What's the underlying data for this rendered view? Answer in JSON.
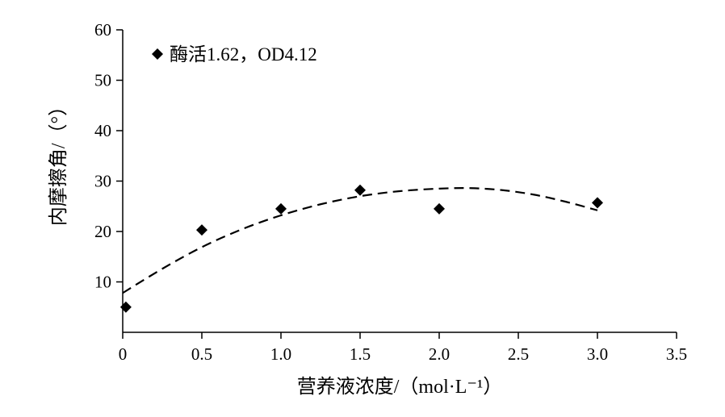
{
  "chart_data": {
    "type": "scatter",
    "xlabel": "营养液浓度/（mol·L⁻¹）",
    "ylabel": "内摩擦角/（°）",
    "xlim": [
      0,
      3.5
    ],
    "ylim": [
      0,
      60
    ],
    "x_ticks": [
      "0",
      "0.5",
      "1.0",
      "1.5",
      "2.0",
      "2.5",
      "3.0",
      "3.5"
    ],
    "y_ticks": [
      "10",
      "20",
      "30",
      "40",
      "50",
      "60"
    ],
    "grid": false,
    "legend_position": "top-left",
    "series": [
      {
        "name": "酶活1.62，OD4.12",
        "marker": "diamond",
        "color": "#000000",
        "points": [
          {
            "x": 0.02,
            "y": 5.0
          },
          {
            "x": 0.5,
            "y": 20.3
          },
          {
            "x": 1.0,
            "y": 24.5
          },
          {
            "x": 1.5,
            "y": 28.2
          },
          {
            "x": 2.0,
            "y": 24.5
          },
          {
            "x": 3.0,
            "y": 25.7
          }
        ]
      }
    ],
    "trendline": {
      "style": "dashed",
      "color": "#000000",
      "points": [
        {
          "x": 0.0,
          "y": 7.8
        },
        {
          "x": 0.25,
          "y": 12.6
        },
        {
          "x": 0.5,
          "y": 16.9
        },
        {
          "x": 0.75,
          "y": 20.4
        },
        {
          "x": 1.0,
          "y": 23.2
        },
        {
          "x": 1.25,
          "y": 25.4
        },
        {
          "x": 1.5,
          "y": 27.0
        },
        {
          "x": 1.75,
          "y": 28.0
        },
        {
          "x": 2.0,
          "y": 28.5
        },
        {
          "x": 2.2,
          "y": 28.6
        },
        {
          "x": 2.4,
          "y": 28.2
        },
        {
          "x": 2.6,
          "y": 27.3
        },
        {
          "x": 2.8,
          "y": 25.9
        },
        {
          "x": 3.0,
          "y": 24.2
        }
      ]
    }
  }
}
